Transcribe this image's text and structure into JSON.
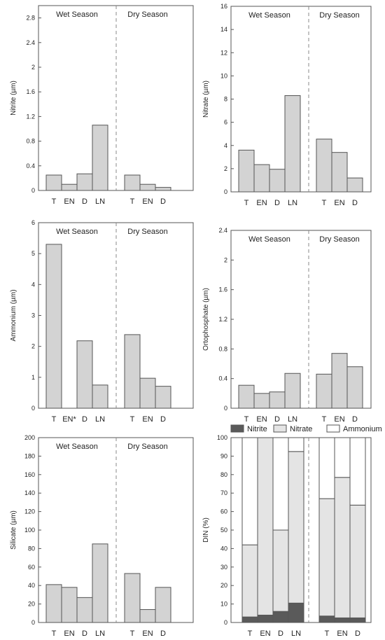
{
  "chart_data": [
    {
      "type": "bar",
      "ylabel": "Nitrite (µm)",
      "ylim": [
        0,
        3.0
      ],
      "yticks": [
        "0",
        "0.4",
        "0.8",
        "1.2",
        "1.6",
        "2",
        "2.4",
        "2.8"
      ],
      "groups": [
        {
          "label": "Wet Season",
          "categories": [
            "T",
            "EN",
            "D",
            "LN"
          ],
          "values": [
            0.25,
            0.1,
            0.27,
            1.06
          ]
        },
        {
          "label": "Dry Season",
          "categories": [
            "T",
            "EN",
            "D"
          ],
          "values": [
            0.25,
            0.1,
            0.05
          ]
        }
      ]
    },
    {
      "type": "bar",
      "ylabel": "Nitrate (µm)",
      "ylim": [
        0,
        16
      ],
      "yticks": [
        "0",
        "2",
        "4",
        "6",
        "8",
        "10",
        "12",
        "14",
        "16"
      ],
      "groups": [
        {
          "label": "Wet Season",
          "categories": [
            "T",
            "EN",
            "D",
            "LN"
          ],
          "values": [
            3.6,
            2.35,
            1.95,
            8.3
          ]
        },
        {
          "label": "Dry Season",
          "categories": [
            "T",
            "EN",
            "D"
          ],
          "values": [
            4.55,
            3.4,
            1.2
          ]
        }
      ]
    },
    {
      "type": "bar",
      "ylabel": "Ammonium (µm)",
      "ylim": [
        0,
        6
      ],
      "yticks": [
        "0",
        "1",
        "2",
        "3",
        "4",
        "5",
        "6"
      ],
      "groups": [
        {
          "label": "Wet Season",
          "categories": [
            "T",
            "EN*",
            "D",
            "LN"
          ],
          "values": [
            5.3,
            0,
            2.18,
            0.75
          ]
        },
        {
          "label": "Dry Season",
          "categories": [
            "T",
            "EN",
            "D"
          ],
          "values": [
            2.38,
            0.97,
            0.71
          ]
        }
      ]
    },
    {
      "type": "bar",
      "ylabel": "Ortophosphate (µm)",
      "ylim": [
        0,
        2.4
      ],
      "yticks": [
        "0",
        "0.4",
        "0.8",
        "1.2",
        "1.6",
        "2",
        "2.4"
      ],
      "groups": [
        {
          "label": "Wet Season",
          "categories": [
            "T",
            "EN",
            "D",
            "LN"
          ],
          "values": [
            0.31,
            0.2,
            0.22,
            0.47
          ]
        },
        {
          "label": "Dry Season",
          "categories": [
            "T",
            "EN",
            "D"
          ],
          "values": [
            0.46,
            0.74,
            0.56
          ]
        }
      ]
    },
    {
      "type": "bar",
      "ylabel": "Silicate (µm)",
      "ylim": [
        0,
        200
      ],
      "yticks": [
        "0",
        "20",
        "40",
        "60",
        "80",
        "100",
        "120",
        "140",
        "160",
        "180",
        "200"
      ],
      "groups": [
        {
          "label": "Wet Season",
          "categories": [
            "T",
            "EN",
            "D",
            "LN"
          ],
          "values": [
            41,
            38,
            27,
            85
          ]
        },
        {
          "label": "Dry Season",
          "categories": [
            "T",
            "EN",
            "D"
          ],
          "values": [
            53,
            14,
            38
          ]
        }
      ]
    },
    {
      "type": "stacked-bar",
      "ylabel": "DIN (%)",
      "ylim": [
        0,
        100
      ],
      "yticks": [
        "0",
        "10",
        "20",
        "30",
        "40",
        "50",
        "60",
        "70",
        "80",
        "90",
        "100"
      ],
      "legend": [
        {
          "name": "Nitrite",
          "color": "#5a5a5a"
        },
        {
          "name": "Nitrate",
          "color": "#e4e4e4"
        },
        {
          "name": "Ammonium",
          "color": "#ffffff"
        }
      ],
      "groups": [
        {
          "label": "Wet Season",
          "categories": [
            "T",
            "EN",
            "D",
            "LN"
          ],
          "series": [
            {
              "name": "Nitrite",
              "values": [
                3,
                4,
                6,
                10.5
              ]
            },
            {
              "name": "Nitrate",
              "values": [
                39,
                96,
                44,
                82
              ]
            },
            {
              "name": "Ammonium",
              "values": [
                58,
                0,
                50,
                7.5
              ]
            }
          ]
        },
        {
          "label": "Dry Season",
          "categories": [
            "T",
            "EN",
            "D"
          ],
          "series": [
            {
              "name": "Nitrite",
              "values": [
                3.5,
                2.5,
                2.5
              ]
            },
            {
              "name": "Nitrate",
              "values": [
                63.5,
                76,
                61
              ]
            },
            {
              "name": "Ammonium",
              "values": [
                33,
                21.5,
                36.5
              ]
            }
          ]
        }
      ]
    }
  ]
}
